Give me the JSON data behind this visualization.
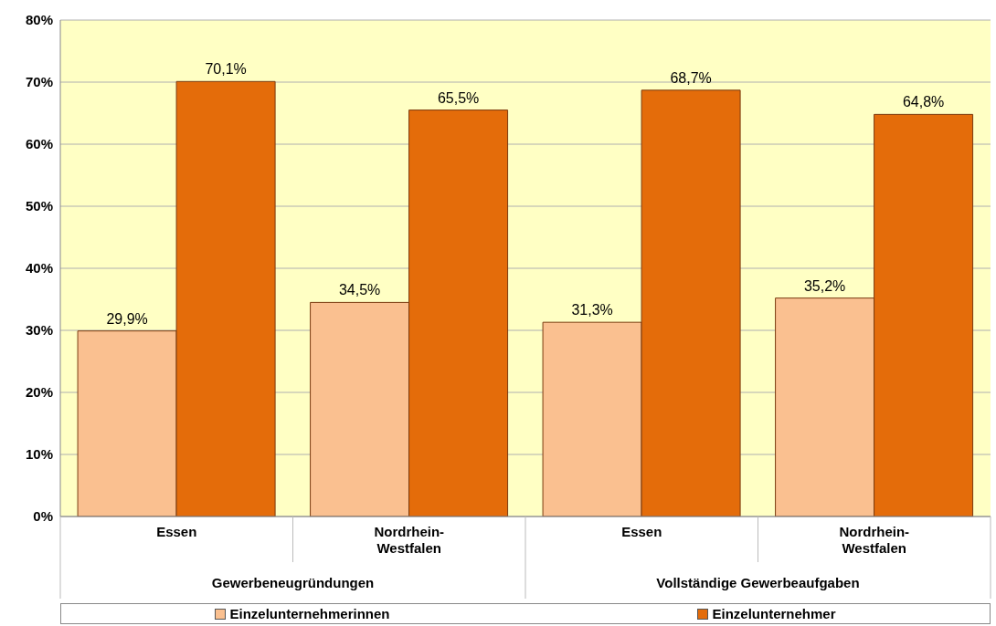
{
  "chart_data": {
    "type": "bar",
    "categories": [
      "Essen",
      "Nordrhein-Westfalen",
      "Essen",
      "Nordrhein-Westfalen"
    ],
    "series": [
      {
        "name": "Einzelunternehmerinnen",
        "color": "#fac090",
        "values": [
          29.9,
          34.5,
          31.3,
          35.2
        ],
        "value_labels": [
          "29,9%",
          "34,5%",
          "31,3%",
          "35,2%"
        ]
      },
      {
        "name": "Einzelunternehmer",
        "color": "#e46c0a",
        "values": [
          70.1,
          65.5,
          68.7,
          64.8
        ],
        "value_labels": [
          "70,1%",
          "65,5%",
          "68,7%",
          "64,8%"
        ]
      }
    ],
    "annotations": [
      "Gewerbeneugründungen",
      "Vollständige Gewerbeaufgaben"
    ],
    "ylim": [
      0,
      80
    ],
    "yticks": [
      {
        "value": 0,
        "label": "0%"
      },
      {
        "value": 10,
        "label": "10%"
      },
      {
        "value": 20,
        "label": "20%"
      },
      {
        "value": 30,
        "label": "30%"
      },
      {
        "value": 40,
        "label": "40%"
      },
      {
        "value": 50,
        "label": "50%"
      },
      {
        "value": 60,
        "label": "60%"
      },
      {
        "value": 70,
        "label": "70%"
      },
      {
        "value": 80,
        "label": "80%"
      }
    ],
    "grid": "y",
    "legend": "bottom"
  }
}
